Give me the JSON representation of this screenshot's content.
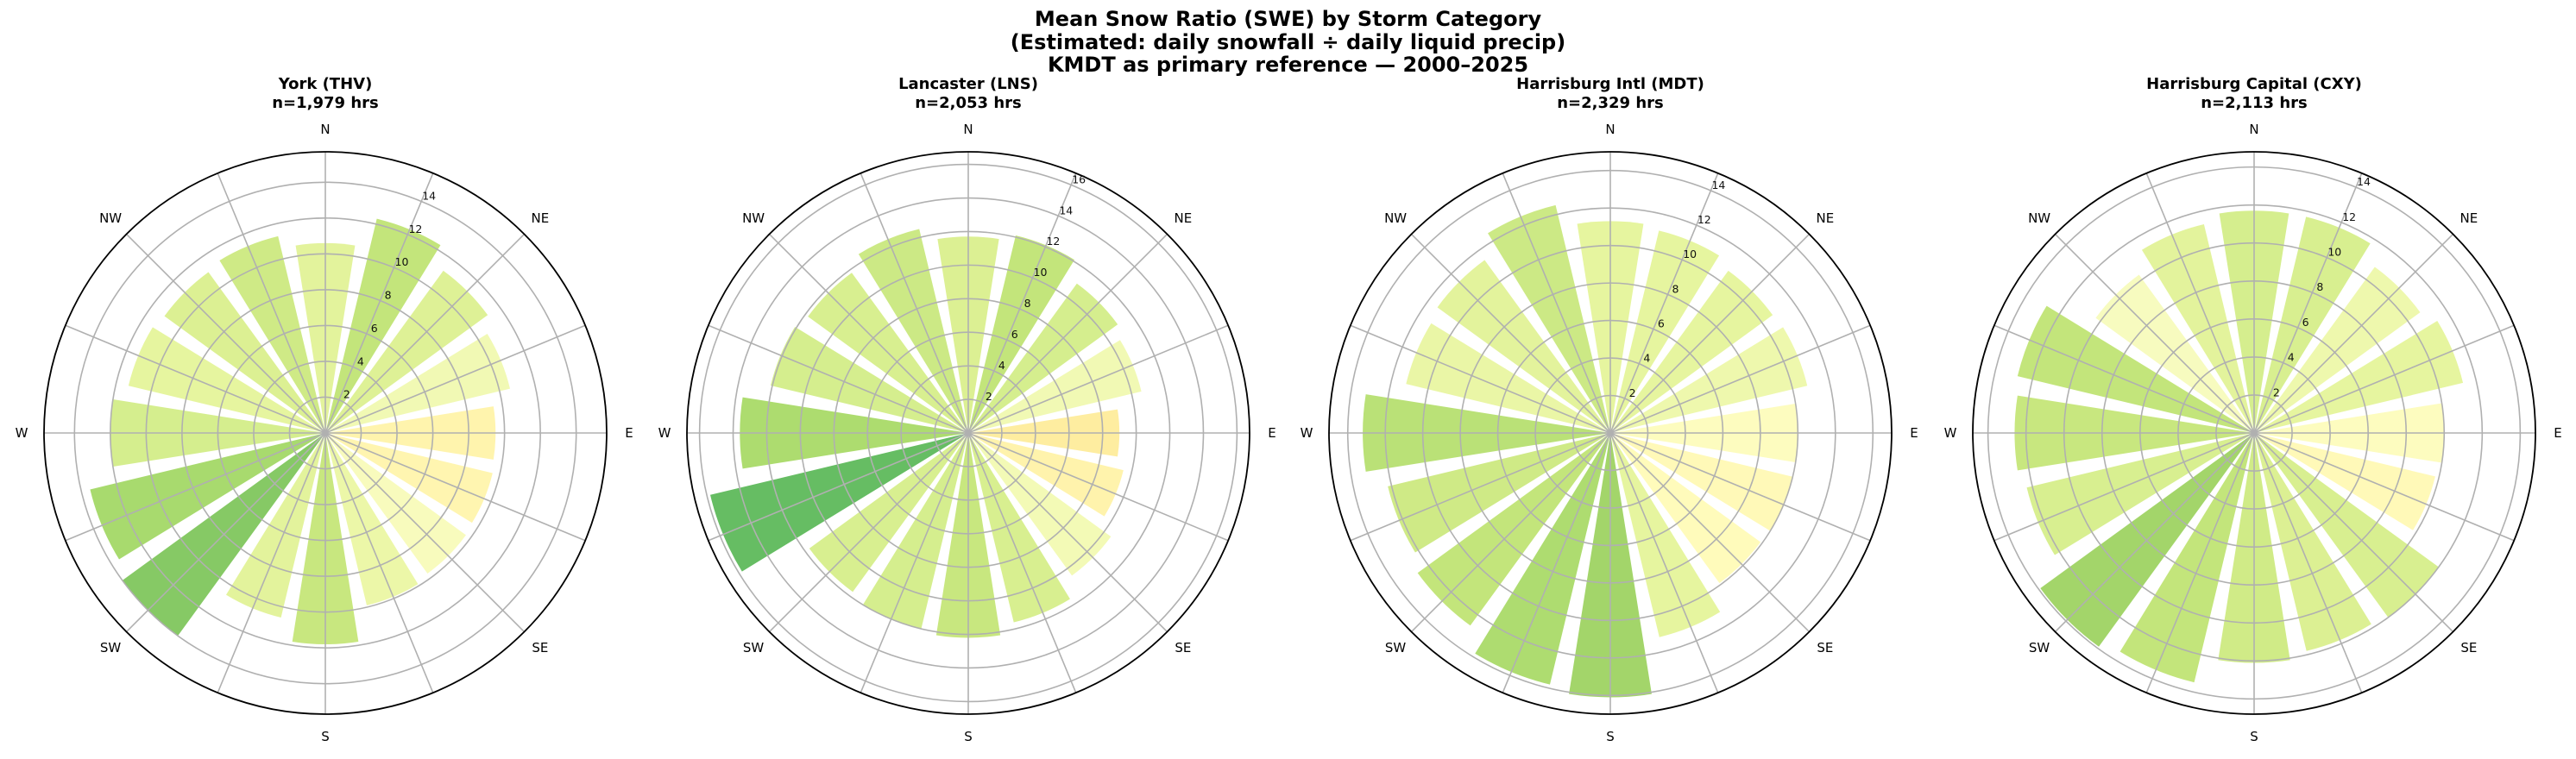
{
  "figure": {
    "title_lines": [
      "Mean Snow Ratio (SWE) by Storm Category",
      "(Estimated: daily snowfall ÷ daily liquid precip)",
      "KMDT as primary reference — 2000–2025"
    ]
  },
  "directions": [
    "N",
    "NNE",
    "NE",
    "ENE",
    "E",
    "ESE",
    "SE",
    "SSE",
    "S",
    "SSW",
    "SW",
    "WSW",
    "W",
    "WNW",
    "NW",
    "NNW"
  ],
  "direction_labels": [
    "N",
    "NE",
    "E",
    "SE",
    "S",
    "SW",
    "W",
    "NW"
  ],
  "colors": {
    "grid": "#b0b0b0",
    "spine": "#000000"
  },
  "chart_data": [
    {
      "type": "bar",
      "subtype": "polar",
      "title": "York (THV)",
      "subtitle": "n=1,979 hrs",
      "categories": [
        "N",
        "NNE",
        "NE",
        "ENE",
        "E",
        "ESE",
        "SE",
        "SSE",
        "S",
        "SSW",
        "SW",
        "WSW",
        "W",
        "WNW",
        "NW",
        "NNW"
      ],
      "values": [
        10.6,
        12.3,
        11.2,
        10.6,
        9.5,
        9.6,
        9.7,
        9.9,
        11.8,
        10.6,
        14.0,
        13.5,
        12.0,
        11.3,
        11.1,
        11.3
      ],
      "bar_colors": [
        "#e3f39c",
        "#c3e57b",
        "#def196",
        "#f1f9b4",
        "#fff4ad",
        "#fff5b0",
        "#f8fbbd",
        "#ecf7a8",
        "#c8e77f",
        "#e3f39c",
        "#86c965",
        "#a8da6e",
        "#d5ee8e",
        "#e6f59f",
        "#dcf093",
        "#cfea86"
      ],
      "rticks": [
        2,
        4,
        6,
        8,
        10,
        12,
        14
      ],
      "rlim": [
        0,
        15.7
      ]
    },
    {
      "type": "bar",
      "subtype": "polar",
      "title": "Lancaster (LNS)",
      "subtitle": "n=2,053 hrs",
      "categories": [
        "N",
        "NNE",
        "NE",
        "ENE",
        "E",
        "ESE",
        "SE",
        "SSE",
        "S",
        "SSW",
        "SW",
        "WSW",
        "W",
        "WNW",
        "NW",
        "NNW"
      ],
      "values": [
        11.7,
        12.1,
        11.0,
        10.6,
        9.0,
        9.5,
        10.5,
        11.6,
        12.2,
        12.0,
        11.7,
        15.8,
        13.6,
        12.1,
        11.8,
        12.5
      ],
      "bar_colors": [
        "#dcf093",
        "#c3e57b",
        "#d5ee8e",
        "#f1f9b4",
        "#feeda0",
        "#fff3ac",
        "#f3fab6",
        "#d8ef90",
        "#c8e77f",
        "#d5ee8e",
        "#d8ef90",
        "#66bd63",
        "#addc6f",
        "#d5ee8e",
        "#d8ef90",
        "#cce985"
      ],
      "rticks": [
        2,
        4,
        6,
        8,
        10,
        12,
        14,
        16
      ],
      "rlim": [
        0,
        16.75
      ]
    },
    {
      "type": "bar",
      "subtype": "polar",
      "title": "Harrisburg Intl (MDT)",
      "subtitle": "n=2,329 hrs",
      "categories": [
        "N",
        "NNE",
        "NE",
        "ENE",
        "E",
        "ESE",
        "SE",
        "SSE",
        "S",
        "SSW",
        "SW",
        "WSW",
        "W",
        "WNW",
        "NW",
        "NNW"
      ],
      "values": [
        11.3,
        11.1,
        10.7,
        10.8,
        10.0,
        10.0,
        9.9,
        11.2,
        14.1,
        13.8,
        12.7,
        12.2,
        13.2,
        11.2,
        11.4,
        12.5
      ],
      "bar_colors": [
        "#e6f59f",
        "#e6f59f",
        "#e6f59f",
        "#eef8ad",
        "#fdfcbf",
        "#fff9b8",
        "#fffbbb",
        "#e6f59f",
        "#a3d56a",
        "#aedc70",
        "#c3e57b",
        "#cfea86",
        "#bae177",
        "#eaf6a6",
        "#e3f39c",
        "#cce985"
      ],
      "rticks": [
        2,
        4,
        6,
        8,
        10,
        12,
        14
      ],
      "rlim": [
        0,
        15.0
      ]
    },
    {
      "type": "bar",
      "subtype": "polar",
      "title": "Harrisburg Capital (CXY)",
      "subtitle": "n=2,113 hrs",
      "categories": [
        "N",
        "NNE",
        "NE",
        "ENE",
        "E",
        "ESE",
        "SE",
        "SSE",
        "S",
        "SSW",
        "SW",
        "WSW",
        "W",
        "WNW",
        "NW",
        "NNW"
      ],
      "values": [
        11.7,
        11.7,
        10.8,
        11.3,
        10.0,
        9.8,
        12.0,
        11.8,
        12.1,
        13.5,
        13.9,
        12.3,
        12.6,
        12.8,
        10.3,
        11.3
      ],
      "bar_colors": [
        "#d5ee8e",
        "#d8ef90",
        "#eef8ad",
        "#e6f59f",
        "#fdfcbf",
        "#fff9b8",
        "#d8ef90",
        "#dcf093",
        "#d0eb87",
        "#c3e57b",
        "#a3d56a",
        "#d8ef90",
        "#c8e77f",
        "#c3e57b",
        "#f7fbbf",
        "#e3f39c"
      ],
      "rticks": [
        2,
        4,
        6,
        8,
        10,
        12,
        14
      ],
      "rlim": [
        0,
        14.8
      ]
    }
  ]
}
